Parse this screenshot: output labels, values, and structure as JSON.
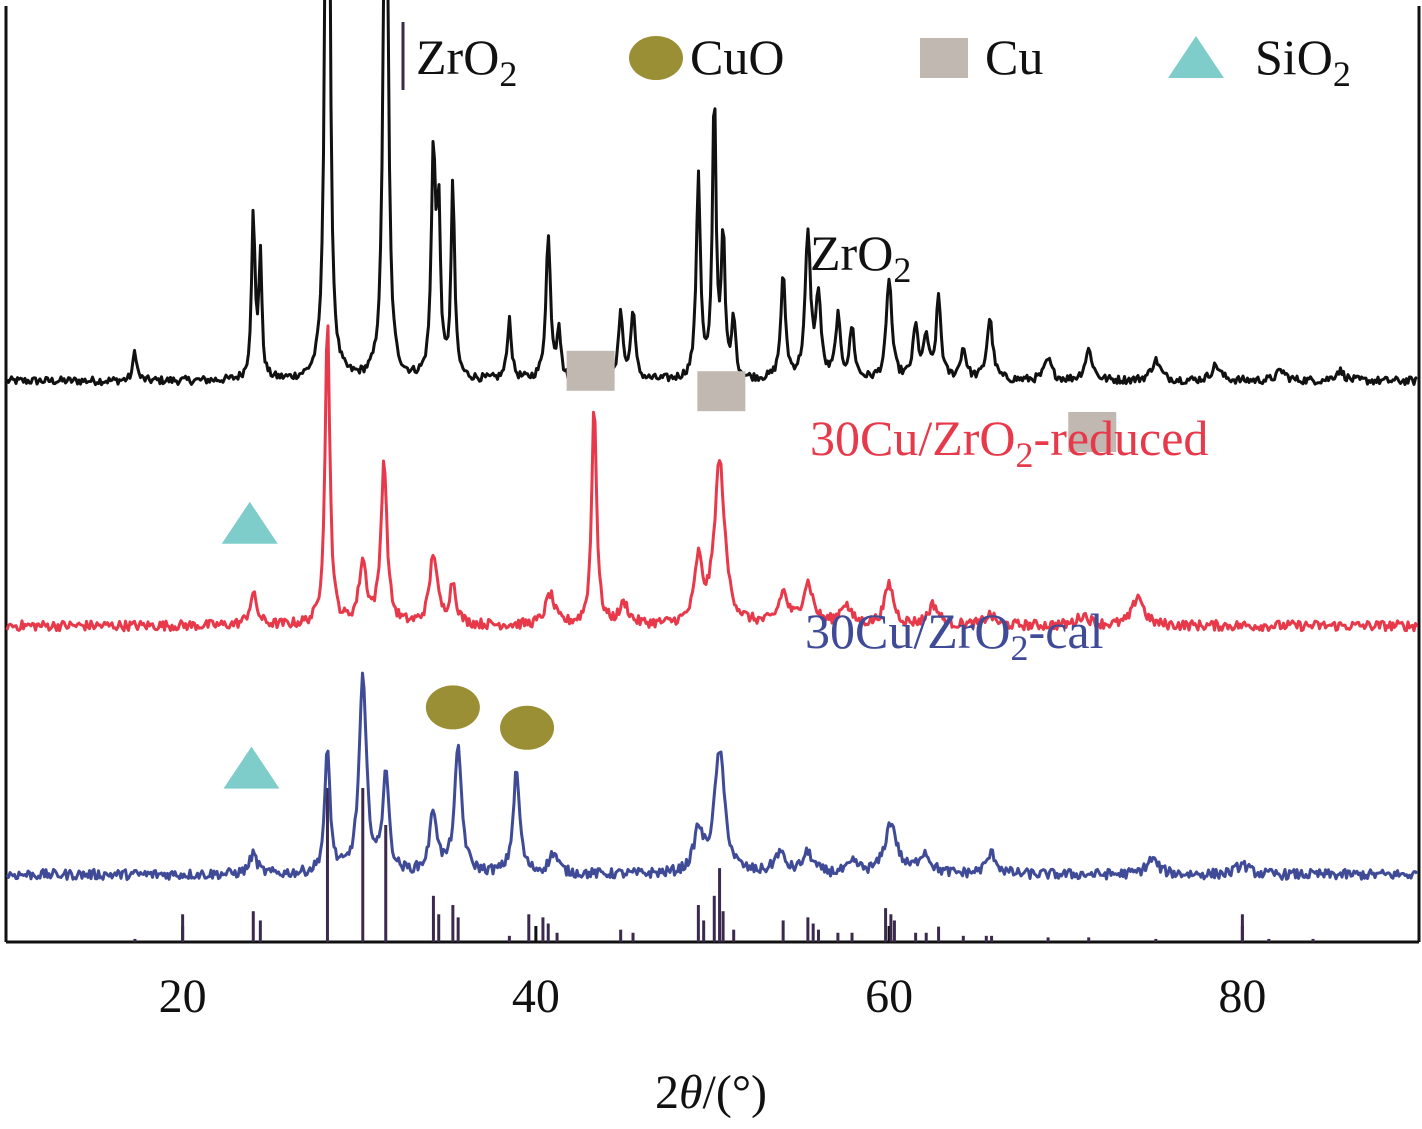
{
  "chart_data": {
    "type": "line",
    "xlabel_parts": {
      "pre": "2",
      "theta": "θ",
      "post": "/(°)"
    },
    "ylabel": "",
    "xlim": [
      10,
      90
    ],
    "xticks": [
      "20",
      "40",
      "60",
      "80"
    ],
    "legend": {
      "placement": "top",
      "items": [
        {
          "marker": "bar",
          "text": "ZrO",
          "sub": "2",
          "color": "#3b2a4e"
        },
        {
          "marker": "ellipse",
          "text": "CuO",
          "sub": "",
          "color": "#9b8f35"
        },
        {
          "marker": "square",
          "text": "Cu",
          "sub": "",
          "color": "#c1b8b2"
        },
        {
          "marker": "triangle",
          "text": "SiO",
          "sub": "2",
          "color": "#7ecdcb"
        }
      ]
    },
    "series": [
      {
        "key": "zro2",
        "label": {
          "pre": "ZrO",
          "sub": "2",
          "post": ""
        },
        "color": "#111111",
        "baseline_au": 0.55,
        "noise_au": 0.004,
        "peaks": [
          [
            17.3,
            0.03,
            0.12
          ],
          [
            24.0,
            0.16,
            0.12
          ],
          [
            24.4,
            0.12,
            0.1
          ],
          [
            28.2,
            1.0,
            0.12
          ],
          [
            31.5,
            0.68,
            0.14
          ],
          [
            34.2,
            0.22,
            0.14
          ],
          [
            34.5,
            0.15,
            0.12
          ],
          [
            35.3,
            0.19,
            0.12
          ],
          [
            38.5,
            0.06,
            0.14
          ],
          [
            40.7,
            0.14,
            0.16
          ],
          [
            41.3,
            0.05,
            0.12
          ],
          [
            44.8,
            0.07,
            0.14
          ],
          [
            45.5,
            0.07,
            0.14
          ],
          [
            49.2,
            0.2,
            0.14
          ],
          [
            50.1,
            0.28,
            0.12
          ],
          [
            50.6,
            0.14,
            0.12
          ],
          [
            51.2,
            0.06,
            0.12
          ],
          [
            54.0,
            0.1,
            0.16
          ],
          [
            55.4,
            0.14,
            0.18
          ],
          [
            56.0,
            0.08,
            0.16
          ],
          [
            57.1,
            0.06,
            0.16
          ],
          [
            57.9,
            0.05,
            0.16
          ],
          [
            60.0,
            0.1,
            0.18
          ],
          [
            61.5,
            0.05,
            0.18
          ],
          [
            62.1,
            0.04,
            0.16
          ],
          [
            62.8,
            0.08,
            0.16
          ],
          [
            64.2,
            0.03,
            0.2
          ],
          [
            65.7,
            0.06,
            0.2
          ],
          [
            69.0,
            0.02,
            0.25
          ],
          [
            71.3,
            0.03,
            0.25
          ],
          [
            75.1,
            0.02,
            0.3
          ],
          [
            78.5,
            0.015,
            0.3
          ],
          [
            82.2,
            0.01,
            0.3
          ],
          [
            85.5,
            0.01,
            0.3
          ]
        ],
        "annotations": []
      },
      {
        "key": "reduced",
        "label": {
          "pre": "30Cu/ZrO",
          "sub": "2",
          "post": "-reduced"
        },
        "color": "#e8394a",
        "baseline_au": 0.31,
        "noise_au": 0.005,
        "peaks": [
          [
            24.0,
            0.03,
            0.25
          ],
          [
            28.2,
            0.3,
            0.16
          ],
          [
            30.2,
            0.06,
            0.25
          ],
          [
            31.4,
            0.16,
            0.2
          ],
          [
            34.2,
            0.07,
            0.25
          ],
          [
            35.3,
            0.04,
            0.22
          ],
          [
            40.8,
            0.03,
            0.3
          ],
          [
            43.3,
            0.22,
            0.16
          ],
          [
            45.0,
            0.02,
            0.3
          ],
          [
            49.2,
            0.06,
            0.25
          ],
          [
            50.4,
            0.16,
            0.35
          ],
          [
            54.0,
            0.03,
            0.3
          ],
          [
            55.4,
            0.04,
            0.35
          ],
          [
            57.5,
            0.02,
            0.35
          ],
          [
            60.0,
            0.04,
            0.3
          ],
          [
            62.5,
            0.02,
            0.35
          ],
          [
            65.7,
            0.01,
            0.35
          ],
          [
            71.0,
            0.01,
            0.4
          ],
          [
            74.1,
            0.03,
            0.35
          ]
        ],
        "annotations": [
          {
            "marker": "triangle",
            "x": 23.8,
            "y_au": 0.41
          },
          {
            "marker": "square",
            "x": 43.1,
            "y_au": 0.56
          },
          {
            "marker": "square",
            "x": 50.5,
            "y_au": 0.54
          },
          {
            "marker": "square",
            "x": 71.5,
            "y_au": 0.5
          }
        ]
      },
      {
        "key": "cal",
        "label": {
          "pre": "30Cu/ZrO",
          "sub": "2",
          "post": "-cal"
        },
        "color": "#3f4b97",
        "baseline_au": 0.066,
        "noise_au": 0.005,
        "peaks": [
          [
            24.0,
            0.02,
            0.25
          ],
          [
            28.2,
            0.12,
            0.18
          ],
          [
            30.2,
            0.19,
            0.25
          ],
          [
            31.5,
            0.1,
            0.2
          ],
          [
            34.2,
            0.06,
            0.25
          ],
          [
            35.6,
            0.12,
            0.25
          ],
          [
            38.9,
            0.1,
            0.22
          ],
          [
            41.0,
            0.02,
            0.3
          ],
          [
            49.2,
            0.04,
            0.3
          ],
          [
            50.4,
            0.12,
            0.35
          ],
          [
            53.8,
            0.02,
            0.35
          ],
          [
            55.4,
            0.02,
            0.35
          ],
          [
            58.0,
            0.01,
            0.35
          ],
          [
            60.1,
            0.05,
            0.4
          ],
          [
            62.0,
            0.02,
            0.4
          ],
          [
            65.8,
            0.02,
            0.35
          ],
          [
            74.9,
            0.015,
            0.4
          ],
          [
            80.0,
            0.01,
            0.4
          ]
        ],
        "annotations": [
          {
            "marker": "triangle",
            "x": 23.9,
            "y_au": 0.17
          },
          {
            "marker": "ellipse",
            "x": 35.3,
            "y_au": 0.23
          },
          {
            "marker": "ellipse",
            "x": 39.5,
            "y_au": 0.21
          }
        ]
      }
    ],
    "reference": {
      "name": "ZrO2",
      "color": "#3b2a4e",
      "sticks": [
        [
          17.3,
          2
        ],
        [
          20.0,
          18
        ],
        [
          24.0,
          20
        ],
        [
          24.4,
          14
        ],
        [
          28.2,
          100
        ],
        [
          30.2,
          100
        ],
        [
          31.5,
          76
        ],
        [
          34.2,
          30
        ],
        [
          34.5,
          18
        ],
        [
          35.3,
          24
        ],
        [
          35.6,
          16
        ],
        [
          38.5,
          4
        ],
        [
          39.6,
          18
        ],
        [
          40.4,
          16
        ],
        [
          40.7,
          12
        ],
        [
          41.2,
          6
        ],
        [
          44.8,
          8
        ],
        [
          45.5,
          6
        ],
        [
          49.2,
          24
        ],
        [
          49.5,
          14
        ],
        [
          50.1,
          30
        ],
        [
          50.4,
          48
        ],
        [
          50.6,
          20
        ],
        [
          51.2,
          8
        ],
        [
          54.0,
          14
        ],
        [
          55.4,
          16
        ],
        [
          55.7,
          12
        ],
        [
          56.0,
          8
        ],
        [
          57.1,
          6
        ],
        [
          57.9,
          6
        ],
        [
          59.8,
          22
        ],
        [
          60.1,
          18
        ],
        [
          60.3,
          14
        ],
        [
          61.5,
          6
        ],
        [
          62.1,
          6
        ],
        [
          62.8,
          10
        ],
        [
          64.2,
          4
        ],
        [
          65.5,
          4
        ],
        [
          65.8,
          4
        ],
        [
          69.0,
          3
        ],
        [
          71.3,
          3
        ],
        [
          75.1,
          2
        ],
        [
          80.0,
          18
        ],
        [
          81.5,
          2
        ],
        [
          84.0,
          2
        ]
      ]
    }
  }
}
